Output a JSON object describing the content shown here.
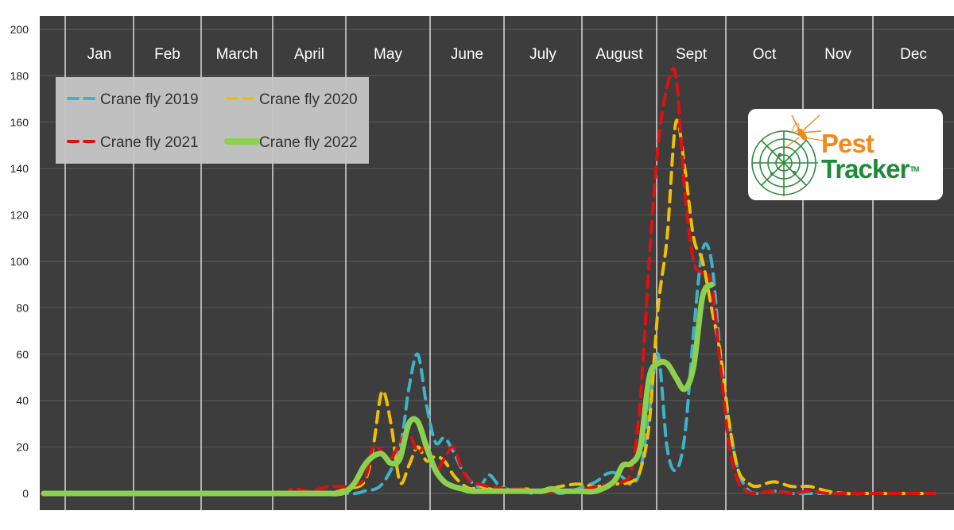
{
  "chart_data": {
    "type": "line",
    "months": [
      "Jan",
      "Feb",
      "March",
      "April",
      "May",
      "June",
      "July",
      "August",
      "Sept",
      "Oct",
      "Nov",
      "Dec"
    ],
    "ylim": [
      0,
      200
    ],
    "yticks": [
      0,
      20,
      40,
      60,
      80,
      100,
      120,
      140,
      160,
      180,
      200
    ],
    "grid": true,
    "legend_position": "top-left",
    "series": [
      {
        "name": "Crane fly 2019",
        "color": "#3cb4c8",
        "style": "dashed",
        "points": [
          [
            0,
            0
          ],
          [
            4,
            0
          ],
          [
            8,
            0
          ],
          [
            12,
            0
          ],
          [
            16,
            0
          ],
          [
            20,
            0
          ],
          [
            24,
            0
          ],
          [
            28,
            0
          ],
          [
            30,
            0
          ],
          [
            32,
            0
          ],
          [
            34,
            0
          ],
          [
            35,
            0
          ],
          [
            36,
            1
          ],
          [
            38,
            4
          ],
          [
            40,
            20
          ],
          [
            41,
            45
          ],
          [
            42,
            60
          ],
          [
            43,
            38
          ],
          [
            44,
            22
          ],
          [
            45,
            24
          ],
          [
            46,
            18
          ],
          [
            47,
            10
          ],
          [
            48,
            5
          ],
          [
            49,
            3
          ],
          [
            50,
            8
          ],
          [
            51,
            4
          ],
          [
            52,
            2
          ],
          [
            53,
            1
          ],
          [
            54,
            1
          ],
          [
            55,
            0
          ],
          [
            56,
            1
          ],
          [
            57,
            2
          ],
          [
            58,
            0
          ],
          [
            60,
            2
          ],
          [
            62,
            5
          ],
          [
            63,
            8
          ],
          [
            64,
            9
          ],
          [
            65,
            7
          ],
          [
            66,
            4
          ],
          [
            67,
            10
          ],
          [
            68,
            35
          ],
          [
            69,
            60
          ],
          [
            70,
            20
          ],
          [
            71,
            10
          ],
          [
            72,
            25
          ],
          [
            73,
            70
          ],
          [
            74,
            105
          ],
          [
            75,
            100
          ],
          [
            76,
            60
          ],
          [
            77,
            30
          ],
          [
            78,
            10
          ],
          [
            79,
            2
          ],
          [
            80,
            0
          ],
          [
            82,
            1
          ],
          [
            84,
            0
          ],
          [
            86,
            0
          ],
          [
            88,
            0
          ],
          [
            90,
            0
          ],
          [
            92,
            0
          ],
          [
            94,
            0
          ],
          [
            96,
            0
          ],
          [
            98,
            0
          ],
          [
            100,
            0
          ]
        ]
      },
      {
        "name": "Crane fly 2020",
        "color": "#f0c000",
        "style": "dashed",
        "points": [
          [
            0,
            0
          ],
          [
            4,
            0
          ],
          [
            8,
            0
          ],
          [
            12,
            0
          ],
          [
            16,
            0
          ],
          [
            20,
            0
          ],
          [
            24,
            0
          ],
          [
            28,
            0
          ],
          [
            30,
            0
          ],
          [
            32,
            0
          ],
          [
            34,
            2
          ],
          [
            36,
            5
          ],
          [
            37,
            20
          ],
          [
            38,
            44
          ],
          [
            39,
            30
          ],
          [
            40,
            5
          ],
          [
            41,
            12
          ],
          [
            42,
            20
          ],
          [
            43,
            14
          ],
          [
            44,
            16
          ],
          [
            45,
            14
          ],
          [
            46,
            8
          ],
          [
            47,
            4
          ],
          [
            48,
            2
          ],
          [
            49,
            3
          ],
          [
            50,
            2
          ],
          [
            52,
            1
          ],
          [
            54,
            2
          ],
          [
            56,
            1
          ],
          [
            58,
            3
          ],
          [
            60,
            4
          ],
          [
            62,
            3
          ],
          [
            64,
            4
          ],
          [
            66,
            5
          ],
          [
            67,
            10
          ],
          [
            68,
            30
          ],
          [
            69,
            80
          ],
          [
            70,
            110
          ],
          [
            71,
            160
          ],
          [
            72,
            140
          ],
          [
            73,
            110
          ],
          [
            74,
            100
          ],
          [
            75,
            80
          ],
          [
            76,
            60
          ],
          [
            77,
            30
          ],
          [
            78,
            10
          ],
          [
            79,
            5
          ],
          [
            80,
            3
          ],
          [
            82,
            5
          ],
          [
            84,
            3
          ],
          [
            86,
            3
          ],
          [
            88,
            1
          ],
          [
            90,
            0
          ],
          [
            92,
            0
          ],
          [
            94,
            0
          ],
          [
            96,
            0
          ],
          [
            98,
            0
          ],
          [
            100,
            0
          ]
        ]
      },
      {
        "name": "Crane fly 2021",
        "color": "#e01010",
        "style": "dashed",
        "points": [
          [
            0,
            0
          ],
          [
            4,
            0
          ],
          [
            8,
            0
          ],
          [
            12,
            0
          ],
          [
            16,
            0
          ],
          [
            20,
            0
          ],
          [
            24,
            0
          ],
          [
            27,
            0
          ],
          [
            28,
            2
          ],
          [
            30,
            1
          ],
          [
            32,
            3
          ],
          [
            34,
            3
          ],
          [
            36,
            6
          ],
          [
            37,
            20
          ],
          [
            38,
            18
          ],
          [
            39,
            15
          ],
          [
            40,
            22
          ],
          [
            41,
            26
          ],
          [
            42,
            18
          ],
          [
            43,
            20
          ],
          [
            44,
            10
          ],
          [
            45,
            15
          ],
          [
            46,
            20
          ],
          [
            47,
            10
          ],
          [
            48,
            5
          ],
          [
            49,
            4
          ],
          [
            50,
            3
          ],
          [
            52,
            2
          ],
          [
            54,
            2
          ],
          [
            56,
            1
          ],
          [
            58,
            1
          ],
          [
            60,
            1
          ],
          [
            62,
            3
          ],
          [
            64,
            4
          ],
          [
            65,
            5
          ],
          [
            66,
            10
          ],
          [
            67,
            40
          ],
          [
            68,
            100
          ],
          [
            69,
            150
          ],
          [
            70,
            175
          ],
          [
            71,
            180
          ],
          [
            72,
            130
          ],
          [
            73,
            100
          ],
          [
            74,
            95
          ],
          [
            75,
            90
          ],
          [
            76,
            55
          ],
          [
            77,
            20
          ],
          [
            78,
            5
          ],
          [
            79,
            1
          ],
          [
            80,
            0
          ],
          [
            82,
            1
          ],
          [
            84,
            0
          ],
          [
            86,
            1
          ],
          [
            88,
            0
          ],
          [
            90,
            0
          ],
          [
            92,
            0
          ],
          [
            94,
            0
          ],
          [
            96,
            0
          ],
          [
            98,
            0
          ],
          [
            100,
            0
          ]
        ]
      },
      {
        "name": "Crane fly 2022",
        "color": "#8cd050",
        "style": "solid",
        "points": [
          [
            0,
            0
          ],
          [
            4,
            0
          ],
          [
            8,
            0
          ],
          [
            12,
            0
          ],
          [
            16,
            0
          ],
          [
            20,
            0
          ],
          [
            24,
            0
          ],
          [
            28,
            0
          ],
          [
            30,
            0
          ],
          [
            32,
            0
          ],
          [
            33,
            0
          ],
          [
            34,
            1
          ],
          [
            35,
            5
          ],
          [
            36,
            12
          ],
          [
            37,
            16
          ],
          [
            38,
            17
          ],
          [
            39,
            13
          ],
          [
            40,
            15
          ],
          [
            41,
            30
          ],
          [
            42,
            31
          ],
          [
            43,
            20
          ],
          [
            44,
            10
          ],
          [
            45,
            5
          ],
          [
            46,
            3
          ],
          [
            47,
            2
          ],
          [
            48,
            1
          ],
          [
            50,
            1
          ],
          [
            52,
            1
          ],
          [
            54,
            1
          ],
          [
            56,
            1
          ],
          [
            57,
            2
          ],
          [
            58,
            1
          ],
          [
            60,
            1
          ],
          [
            62,
            1
          ],
          [
            64,
            5
          ],
          [
            65,
            12
          ],
          [
            66,
            13
          ],
          [
            67,
            20
          ],
          [
            68,
            50
          ],
          [
            69,
            56
          ],
          [
            70,
            56
          ],
          [
            71,
            50
          ],
          [
            72,
            45
          ],
          [
            73,
            55
          ],
          [
            74,
            85
          ],
          [
            75,
            90
          ]
        ]
      }
    ]
  },
  "logo": {
    "line1": "Pest",
    "line2": "Tracker",
    "tm": "TM"
  }
}
